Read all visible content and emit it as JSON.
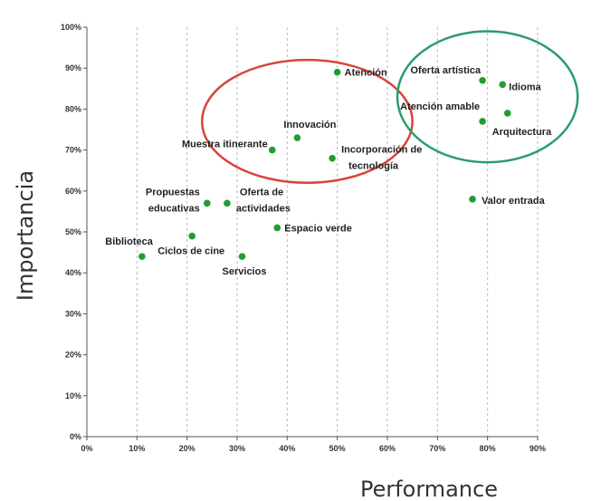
{
  "chart_data": {
    "type": "scatter",
    "xlabel": "Performance",
    "ylabel": "Importancia",
    "xlim": [
      0,
      90
    ],
    "ylim": [
      0,
      100
    ],
    "x_ticks": [
      "0%",
      "10%",
      "20%",
      "30%",
      "40%",
      "50%",
      "60%",
      "70%",
      "80%",
      "90%"
    ],
    "y_ticks": [
      "0%",
      "10%",
      "20%",
      "30%",
      "40%",
      "50%",
      "60%",
      "70%",
      "80%",
      "90%",
      "100%"
    ],
    "grid": "vertical dashed",
    "point_color": "#1e9e32",
    "points": [
      {
        "label": "Atención",
        "x": 50,
        "y": 89
      },
      {
        "label": "Oferta artística",
        "x": 79,
        "y": 87
      },
      {
        "label": "Idioma",
        "x": 83,
        "y": 86
      },
      {
        "label": "Atención amable",
        "x": 79,
        "y": 77
      },
      {
        "label": "Arquitectura",
        "x": 84,
        "y": 79
      },
      {
        "label": "Innovación",
        "x": 42,
        "y": 73
      },
      {
        "label": "Muestra itinerante",
        "x": 37,
        "y": 70
      },
      {
        "label": "Incorporación de tecnología",
        "x": 49,
        "y": 68
      },
      {
        "label": "Valor entrada",
        "x": 77,
        "y": 58
      },
      {
        "label": "Propuestas educativas",
        "x": 24,
        "y": 57
      },
      {
        "label": "Oferta de actividades",
        "x": 28,
        "y": 57
      },
      {
        "label": "Espacio verde",
        "x": 38,
        "y": 51
      },
      {
        "label": "Ciclos de cine",
        "x": 21,
        "y": 49
      },
      {
        "label": "Biblioteca",
        "x": 11,
        "y": 44
      },
      {
        "label": "Servicios",
        "x": 31,
        "y": 44
      }
    ],
    "annotations": [
      {
        "shape": "ellipse",
        "color": "#d9433b",
        "cx": 44,
        "cy": 77,
        "rx": 21,
        "ry": 15
      },
      {
        "shape": "ellipse",
        "color": "#2a9d6a",
        "cx": 80,
        "cy": 83,
        "rx": 18,
        "ry": 16
      }
    ]
  }
}
